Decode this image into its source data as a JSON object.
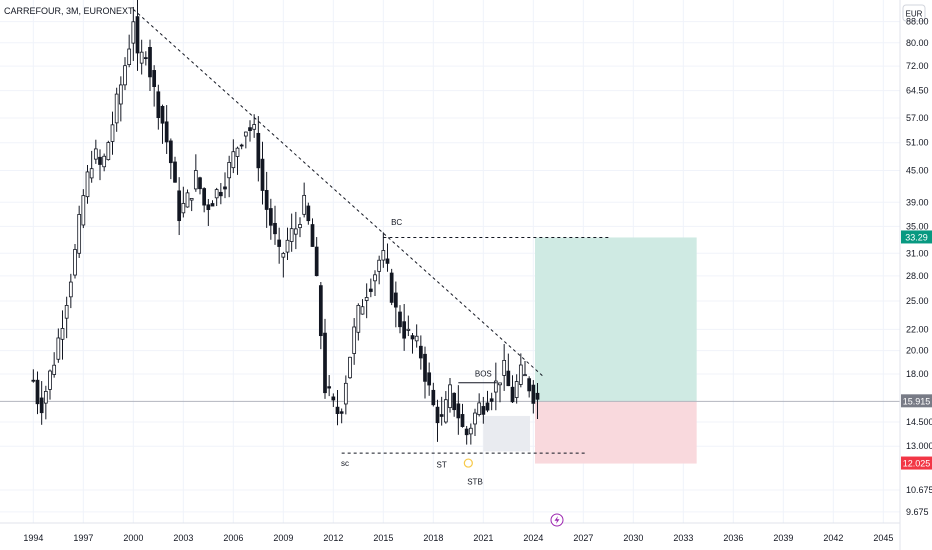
{
  "header": {
    "title": "CARREFOUR, 3M, EURONEXT"
  },
  "currency_button": {
    "label": "EUR"
  },
  "price_badges": [
    {
      "value": "33.29",
      "price": 33.29,
      "color": "#089981"
    },
    {
      "value": "15.915",
      "price": 15.915,
      "color": "#787b86"
    },
    {
      "value": "12.025",
      "price": 12.025,
      "color": "#f23645"
    }
  ],
  "annotations": {
    "bc": "BC",
    "sc": "sc",
    "st": "ST",
    "stb": "STB",
    "bos": "BOS"
  },
  "colors": {
    "up": "#ffffff",
    "down": "#131722",
    "wick": "#131722",
    "target_zone": "#cfeae3",
    "stop_zone": "#f9d9dd",
    "range_box": "#e9ebf0",
    "grid": "#f0f3fa",
    "axis_text": "#131722",
    "event_icon": "#9c27b0",
    "stb_marker": "#f7c948"
  },
  "event_icon": "lightning-icon",
  "chart_data": {
    "type": "candlestick",
    "title": "CARREFOUR, 3M, EURONEXT",
    "scale": "log",
    "ylim": [
      9.2,
      97
    ],
    "xlim": [
      1992.0,
      2046.0
    ],
    "y_ticks": [
      "88.00",
      "80.00",
      "72.00",
      "64.50",
      "57.00",
      "51.00",
      "45.00",
      "39.00",
      "35.00",
      "31.00",
      "28.00",
      "25.00",
      "22.00",
      "20.00",
      "18.00",
      "14.500",
      "13.000",
      "10.675",
      "9.675"
    ],
    "y_tick_values": [
      88,
      80,
      72,
      64.5,
      57,
      51,
      45,
      39,
      35,
      31,
      28,
      25,
      22,
      20,
      18,
      14.5,
      13,
      10.675,
      9.675
    ],
    "x_ticks": [
      "1994",
      "1997",
      "2000",
      "2003",
      "2006",
      "2009",
      "2012",
      "2015",
      "2018",
      "2021",
      "2024",
      "2027",
      "2030",
      "2033",
      "2036",
      "2039",
      "2042",
      "2045"
    ],
    "x_tick_values": [
      1994,
      1997,
      2000,
      2003,
      2006,
      2009,
      2012,
      2015,
      2018,
      2021,
      2024,
      2027,
      2030,
      2033,
      2036,
      2039,
      2042,
      2045
    ],
    "grid": true,
    "last_price": 15.915,
    "anchors": [
      [
        1994.0,
        17.5
      ],
      [
        1994.4,
        15.4
      ],
      [
        1994.8,
        17.0
      ],
      [
        1995.3,
        19.5
      ],
      [
        1995.9,
        24.5
      ],
      [
        1996.5,
        31.0
      ],
      [
        1997.0,
        40.0
      ],
      [
        1997.6,
        49.0
      ],
      [
        1998.1,
        45.0
      ],
      [
        1998.6,
        53.0
      ],
      [
        1999.2,
        65.0
      ],
      [
        1999.7,
        78.0
      ],
      [
        2000.0,
        90.0
      ],
      [
        2000.3,
        70.0
      ],
      [
        2000.7,
        80.0
      ],
      [
        2001.2,
        65.0
      ],
      [
        2001.7,
        57.0
      ],
      [
        2002.2,
        48.0
      ],
      [
        2002.7,
        37.0
      ],
      [
        2003.2,
        39.0
      ],
      [
        2003.8,
        44.0
      ],
      [
        2004.3,
        38.0
      ],
      [
        2004.8,
        40.0
      ],
      [
        2005.3,
        42.0
      ],
      [
        2005.8,
        46.0
      ],
      [
        2006.3,
        51.0
      ],
      [
        2006.8,
        55.0
      ],
      [
        2007.3,
        53.0
      ],
      [
        2007.8,
        40.0
      ],
      [
        2008.3,
        35.0
      ],
      [
        2008.8,
        30.0
      ],
      [
        2009.3,
        33.0
      ],
      [
        2009.8,
        35.0
      ],
      [
        2010.2,
        39.0
      ],
      [
        2010.7,
        33.0
      ],
      [
        2011.1,
        25.0
      ],
      [
        2011.5,
        17.0
      ],
      [
        2012.0,
        15.5
      ],
      [
        2012.4,
        15.0
      ],
      [
        2012.9,
        19.0
      ],
      [
        2013.4,
        23.0
      ],
      [
        2013.9,
        26.0
      ],
      [
        2014.4,
        28.0
      ],
      [
        2014.9,
        31.0
      ],
      [
        2015.3,
        28.0
      ],
      [
        2015.7,
        24.0
      ],
      [
        2016.2,
        22.0
      ],
      [
        2016.7,
        21.0
      ],
      [
        2017.2,
        20.0
      ],
      [
        2017.6,
        17.5
      ],
      [
        2018.0,
        15.5
      ],
      [
        2018.5,
        14.5
      ],
      [
        2019.0,
        16.5
      ],
      [
        2019.5,
        15.0
      ],
      [
        2019.9,
        13.5
      ],
      [
        2020.3,
        14.5
      ],
      [
        2020.7,
        15.5
      ],
      [
        2021.2,
        16.0
      ],
      [
        2021.7,
        17.0
      ],
      [
        2022.2,
        18.5
      ],
      [
        2022.7,
        16.0
      ],
      [
        2023.2,
        18.0
      ],
      [
        2023.6,
        17.5
      ],
      [
        2024.0,
        16.5
      ],
      [
        2024.3,
        15.915
      ]
    ],
    "trendline": {
      "from": [
        2000.0,
        93.0
      ],
      "to": [
        2024.6,
        17.8
      ],
      "style": "dashed"
    },
    "levels": [
      {
        "label": "BC",
        "price": 33.29,
        "from": 2015.0,
        "to": 2028.5,
        "style": "dashed"
      },
      {
        "label": "sc",
        "price": 12.6,
        "from": 2012.5,
        "to": 2027.2,
        "style": "dashed"
      },
      {
        "label": "BOS",
        "price": 17.3,
        "from": 2019.5,
        "to": 2021.8,
        "style": "solid"
      }
    ],
    "position": {
      "entry": 15.915,
      "target": 33.29,
      "stop": 12.025,
      "from": 2024.1,
      "to": 2033.8
    },
    "range_box": {
      "from": 2021.0,
      "to": 2023.8,
      "top": 14.9,
      "bottom": 12.7
    }
  }
}
